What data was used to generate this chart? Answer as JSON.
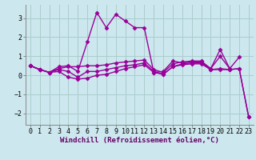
{
  "background_color": "#cce8ee",
  "grid_color": "#aacccc",
  "line_color": "#990099",
  "marker": "D",
  "markersize": 2.5,
  "linewidth": 1.0,
  "xlabel": "Windchill (Refroidissement éolien,°C)",
  "xlabel_fontsize": 6.5,
  "tick_fontsize": 6,
  "xlim": [
    -0.5,
    23.5
  ],
  "ylim": [
    -2.6,
    3.7
  ],
  "yticks": [
    -2,
    -1,
    0,
    1,
    2,
    3
  ],
  "xticks": [
    0,
    1,
    2,
    3,
    4,
    5,
    6,
    7,
    8,
    9,
    10,
    11,
    12,
    13,
    14,
    15,
    16,
    17,
    18,
    19,
    20,
    21,
    22,
    23
  ],
  "series": [
    [
      0.5,
      0.3,
      0.15,
      0.45,
      0.5,
      0.2,
      1.75,
      3.3,
      2.5,
      3.2,
      2.85,
      2.5,
      2.5,
      0.15,
      0.2,
      0.75,
      0.65,
      0.7,
      0.7,
      0.35,
      1.35,
      0.35,
      null,
      null
    ],
    [
      0.5,
      0.3,
      0.15,
      0.35,
      0.45,
      0.45,
      0.5,
      0.5,
      0.55,
      0.65,
      0.7,
      0.75,
      0.8,
      0.3,
      0.15,
      0.6,
      0.7,
      0.75,
      0.75,
      0.35,
      1.0,
      0.35,
      0.95,
      null
    ],
    [
      0.5,
      0.3,
      0.15,
      0.3,
      0.2,
      -0.1,
      0.2,
      0.2,
      0.3,
      0.4,
      0.5,
      0.55,
      0.65,
      0.2,
      0.05,
      0.45,
      0.6,
      0.65,
      0.65,
      0.3,
      0.35,
      0.3,
      0.35,
      -2.2
    ],
    [
      0.5,
      0.3,
      0.15,
      0.2,
      -0.1,
      -0.2,
      -0.15,
      0.0,
      0.05,
      0.2,
      0.35,
      0.45,
      0.55,
      0.15,
      0.05,
      0.45,
      0.55,
      0.6,
      0.6,
      0.3,
      0.3,
      0.3,
      0.35,
      -2.2
    ]
  ]
}
